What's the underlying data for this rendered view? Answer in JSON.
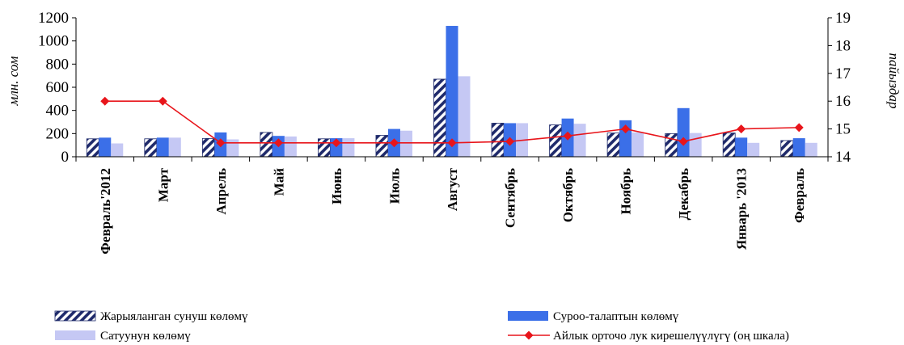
{
  "chart_data": {
    "type": "bar",
    "categories": [
      "Февраль'2012",
      "Март",
      "Апрель",
      "Май",
      "Июнь",
      "Июль",
      "Август",
      "Сентябрь",
      "Октябрь",
      "Ноябрь",
      "Декабрь",
      "Январь '2013",
      "Февраль"
    ],
    "series": [
      {
        "name": "Жарыяланган сунуш көлөмү",
        "kind": "bar",
        "axis": "left",
        "color": "#1f2a6b",
        "pattern": "hatch",
        "values": [
          155,
          155,
          158,
          210,
          155,
          185,
          670,
          290,
          275,
          205,
          200,
          205,
          140
        ]
      },
      {
        "name": "Суроо-талаптын көлөмү",
        "kind": "bar",
        "axis": "left",
        "color": "#3b6fe8",
        "values": [
          165,
          165,
          210,
          180,
          160,
          240,
          1130,
          290,
          330,
          315,
          420,
          165,
          160
        ]
      },
      {
        "name": "Сатуунун көлөмү",
        "kind": "bar",
        "axis": "left",
        "color": "#c5c8f4",
        "values": [
          115,
          165,
          150,
          175,
          160,
          225,
          695,
          290,
          285,
          210,
          205,
          120,
          120
        ]
      },
      {
        "name": "Айлык орточо лук кирешелүүлүгү (оң шкала)",
        "kind": "line",
        "axis": "right",
        "color": "#e8151b",
        "values": [
          16.0,
          16.0,
          14.5,
          14.5,
          14.5,
          14.5,
          14.5,
          14.55,
          14.75,
          15.0,
          14.55,
          15.0,
          15.05
        ]
      }
    ],
    "ylabel": "млн. сом",
    "y2label": "пайыздар",
    "ylim": [
      0,
      1200
    ],
    "yticks": [
      "0",
      "200",
      "400",
      "600",
      "800",
      "1000",
      "1200"
    ],
    "y2lim": [
      14,
      19
    ],
    "y2ticks": [
      "14",
      "15",
      "16",
      "17",
      "18",
      "19"
    ],
    "legend_position": "bottom",
    "grid": false
  }
}
